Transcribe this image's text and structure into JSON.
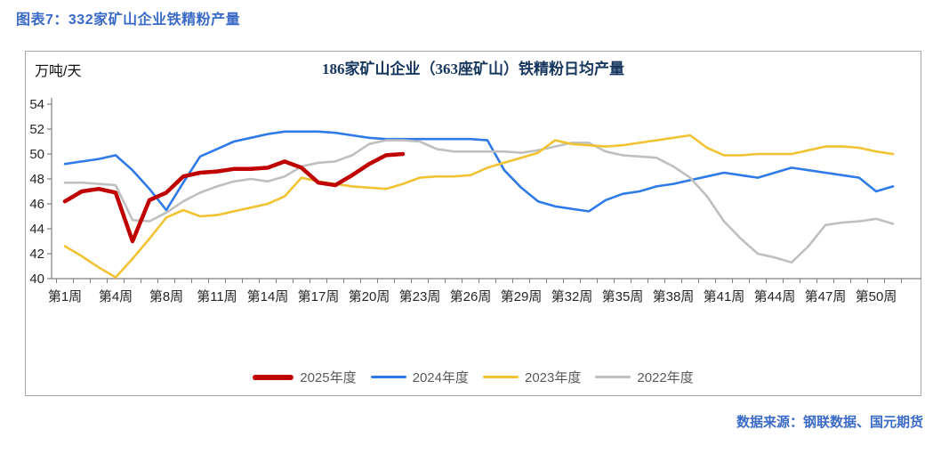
{
  "page": {
    "header_title": "图表7：332家矿山企业铁精粉产量",
    "source_note": "数据来源：钢联数据、国元期货"
  },
  "colors": {
    "header_blue": "#3A6AC8",
    "title_navy": "#17375E",
    "axis_gray": "#808080",
    "tick_text": "#262626",
    "legend_text": "#595959",
    "box_border": "#A6A6A6"
  },
  "chart_data": {
    "type": "line",
    "title": "186家矿山企业（363座矿山）铁精粉日均产量",
    "y_axis_label": "万吨/天",
    "ylim": [
      40,
      54
    ],
    "y_ticks": [
      40,
      42,
      44,
      46,
      48,
      50,
      52,
      54
    ],
    "n_points": 50,
    "grid": false,
    "legend_position": "bottom",
    "x_tick_labels": [
      "第1周",
      "第4周",
      "第8周",
      "第11周",
      "第14周",
      "第17周",
      "第20周",
      "第23周",
      "第26周",
      "第29周",
      "第32周",
      "第35周",
      "第38周",
      "第41周",
      "第44周",
      "第47周",
      "第50周"
    ],
    "series": [
      {
        "name": "2025年度",
        "color": "#C00000",
        "line_width": 4.5,
        "values": [
          46.2,
          47.0,
          47.2,
          46.9,
          43.0,
          46.3,
          46.9,
          48.2,
          48.5,
          48.6,
          48.8,
          48.8,
          48.9,
          49.4,
          48.9,
          47.7,
          47.5,
          48.3,
          49.2,
          49.9,
          50.0
        ]
      },
      {
        "name": "2024年度",
        "color": "#2D7AE8",
        "line_width": 2.6,
        "values": [
          49.2,
          49.4,
          49.6,
          49.9,
          48.7,
          47.2,
          45.5,
          47.7,
          49.8,
          50.4,
          51.0,
          51.3,
          51.6,
          51.8,
          51.8,
          51.8,
          51.7,
          51.5,
          51.3,
          51.2,
          51.2,
          51.2,
          51.2,
          51.2,
          51.2,
          51.1,
          48.7,
          47.3,
          46.2,
          45.8,
          45.6,
          45.4,
          46.3,
          46.8,
          47.0,
          47.4,
          47.6,
          47.9,
          48.2,
          48.5,
          48.3,
          48.1,
          48.5,
          48.9,
          48.7,
          48.5,
          48.3,
          48.1,
          47.0,
          47.4
        ]
      },
      {
        "name": "2023年度",
        "color": "#F1C232",
        "line_width": 2.6,
        "values": [
          42.6,
          41.8,
          40.9,
          40.1,
          41.6,
          43.2,
          44.9,
          45.5,
          45.0,
          45.1,
          45.4,
          45.7,
          46.0,
          46.6,
          48.1,
          47.8,
          47.6,
          47.4,
          47.3,
          47.2,
          47.6,
          48.1,
          48.2,
          48.2,
          48.3,
          48.9,
          49.3,
          49.7,
          50.1,
          51.1,
          50.8,
          50.7,
          50.6,
          50.7,
          50.9,
          51.1,
          51.3,
          51.5,
          50.5,
          49.9,
          49.9,
          50.0,
          50.0,
          50.0,
          50.3,
          50.6,
          50.6,
          50.5,
          50.2,
          50.0
        ]
      },
      {
        "name": "2022年度",
        "color": "#BFBFBF",
        "line_width": 2.6,
        "values": [
          47.7,
          47.7,
          47.6,
          47.5,
          44.7,
          44.6,
          45.3,
          46.2,
          46.9,
          47.4,
          47.8,
          48.0,
          47.8,
          48.2,
          49.0,
          49.3,
          49.4,
          49.9,
          50.8,
          51.1,
          51.1,
          51.0,
          50.4,
          50.2,
          50.2,
          50.2,
          50.2,
          50.1,
          50.3,
          50.6,
          50.9,
          50.9,
          50.2,
          49.9,
          49.8,
          49.7,
          49.0,
          48.1,
          46.6,
          44.6,
          43.2,
          42.0,
          41.7,
          41.3,
          42.6,
          44.3,
          44.5,
          44.6,
          44.8,
          44.4
        ]
      }
    ]
  }
}
